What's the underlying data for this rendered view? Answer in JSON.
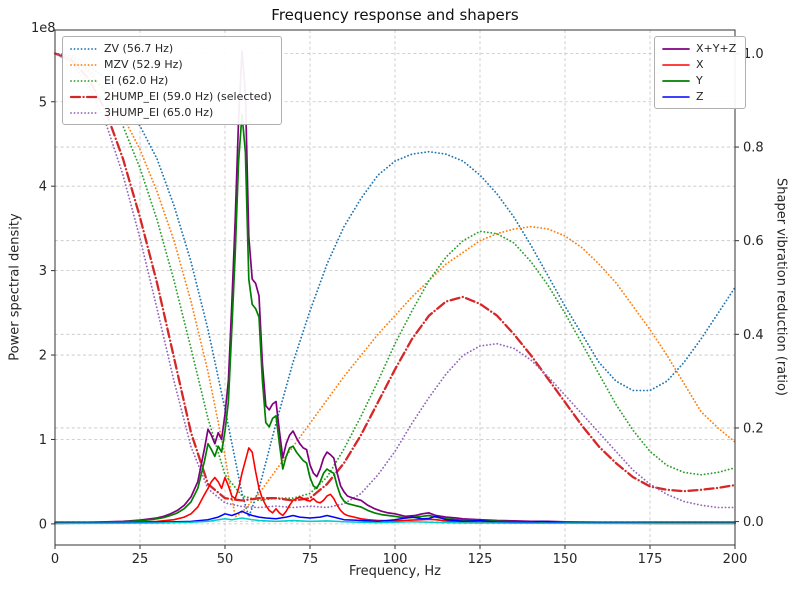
{
  "window": {
    "title": "Frequency response and shapers"
  },
  "chart_data": {
    "type": "line",
    "title": "Frequency response and shapers",
    "xlabel": "Frequency, Hz",
    "ylabel_left": "Power spectral density",
    "ylabel_right": "Shaper vibration reduction (ratio)",
    "offset_text": "1e8",
    "xlim": [
      0,
      200
    ],
    "ylim_left": [
      -0.25,
      5.85
    ],
    "ylim_right": [
      -0.05,
      1.05
    ],
    "left_axis_scale": "1e8",
    "grid": true,
    "xticks": [
      "0",
      "25",
      "50",
      "75",
      "100",
      "125",
      "150",
      "175",
      "200"
    ],
    "yticks_left": [
      "0",
      "1",
      "2",
      "3",
      "4",
      "5"
    ],
    "yticks_right": [
      "0.0",
      "0.2",
      "0.4",
      "0.6",
      "0.8",
      "1.0"
    ],
    "legend_shapers_position": "upper left",
    "legend_series_position": "upper right",
    "series": [
      {
        "name": "ZV",
        "label": "ZV (56.7 Hz)",
        "legend": 1,
        "axis": "right",
        "color": "#1f77b4",
        "style": "dotted",
        "width": 1.8,
        "x": [
          0,
          5,
          10,
          15,
          20,
          25,
          30,
          35,
          40,
          45,
          50,
          55,
          57,
          60,
          65,
          70,
          75,
          80,
          85,
          90,
          95,
          100,
          105,
          110,
          115,
          120,
          125,
          130,
          135,
          140,
          145,
          150,
          155,
          160,
          165,
          170,
          175,
          180,
          185,
          190,
          195,
          200
        ],
        "y": [
          1.0,
          0.995,
          0.975,
          0.945,
          0.9,
          0.845,
          0.775,
          0.675,
          0.555,
          0.41,
          0.24,
          0.06,
          0.01,
          0.07,
          0.21,
          0.34,
          0.45,
          0.55,
          0.63,
          0.69,
          0.74,
          0.77,
          0.785,
          0.79,
          0.785,
          0.77,
          0.74,
          0.7,
          0.65,
          0.59,
          0.525,
          0.46,
          0.4,
          0.34,
          0.3,
          0.28,
          0.28,
          0.3,
          0.34,
          0.39,
          0.445,
          0.5
        ]
      },
      {
        "name": "MZV",
        "label": "MZV (52.9 Hz)",
        "legend": 1,
        "axis": "right",
        "color": "#ff7f0e",
        "style": "dotted",
        "width": 1.8,
        "x": [
          0,
          5,
          10,
          15,
          20,
          25,
          30,
          35,
          40,
          45,
          50,
          53,
          55,
          60,
          65,
          70,
          75,
          80,
          85,
          90,
          95,
          100,
          105,
          110,
          115,
          120,
          125,
          130,
          135,
          140,
          145,
          150,
          155,
          160,
          165,
          170,
          175,
          180,
          185,
          190,
          195,
          200
        ],
        "y": [
          1.0,
          0.99,
          0.965,
          0.92,
          0.865,
          0.795,
          0.705,
          0.6,
          0.47,
          0.32,
          0.14,
          0.01,
          0.02,
          0.06,
          0.11,
          0.16,
          0.21,
          0.26,
          0.31,
          0.355,
          0.4,
          0.44,
          0.48,
          0.515,
          0.55,
          0.575,
          0.6,
          0.615,
          0.625,
          0.63,
          0.625,
          0.61,
          0.585,
          0.55,
          0.51,
          0.46,
          0.41,
          0.355,
          0.295,
          0.235,
          0.2,
          0.17
        ]
      },
      {
        "name": "EI",
        "label": "EI (62.0 Hz)",
        "legend": 1,
        "axis": "right",
        "color": "#2ca02c",
        "style": "dotted",
        "width": 1.8,
        "x": [
          0,
          5,
          10,
          15,
          20,
          25,
          30,
          35,
          40,
          45,
          50,
          55,
          60,
          65,
          70,
          75,
          80,
          85,
          90,
          95,
          100,
          105,
          110,
          115,
          120,
          125,
          130,
          135,
          140,
          145,
          150,
          155,
          160,
          165,
          170,
          175,
          180,
          185,
          190,
          195,
          200
        ],
        "y": [
          1.0,
          0.99,
          0.96,
          0.915,
          0.845,
          0.755,
          0.645,
          0.515,
          0.37,
          0.22,
          0.1,
          0.055,
          0.045,
          0.05,
          0.05,
          0.06,
          0.095,
          0.155,
          0.225,
          0.3,
          0.38,
          0.45,
          0.515,
          0.565,
          0.6,
          0.62,
          0.615,
          0.595,
          0.555,
          0.505,
          0.445,
          0.38,
          0.315,
          0.25,
          0.195,
          0.15,
          0.12,
          0.105,
          0.1,
          0.105,
          0.115
        ]
      },
      {
        "name": "2HUMP_EI",
        "label": "2HUMP_EI (59.0 Hz) (selected)",
        "legend": 1,
        "axis": "right",
        "color": "#d62728",
        "style": "dashdot",
        "width": 2.3,
        "x": [
          0,
          5,
          10,
          15,
          20,
          25,
          30,
          35,
          40,
          45,
          50,
          55,
          60,
          65,
          70,
          75,
          80,
          85,
          90,
          95,
          100,
          105,
          110,
          115,
          120,
          125,
          130,
          135,
          140,
          145,
          150,
          155,
          160,
          165,
          170,
          175,
          180,
          185,
          190,
          195,
          200
        ],
        "y": [
          1.0,
          0.985,
          0.945,
          0.875,
          0.775,
          0.65,
          0.51,
          0.35,
          0.19,
          0.08,
          0.05,
          0.045,
          0.05,
          0.05,
          0.045,
          0.05,
          0.08,
          0.125,
          0.185,
          0.255,
          0.325,
          0.39,
          0.44,
          0.47,
          0.48,
          0.465,
          0.44,
          0.4,
          0.355,
          0.305,
          0.255,
          0.205,
          0.16,
          0.125,
          0.095,
          0.075,
          0.068,
          0.065,
          0.068,
          0.072,
          0.078
        ]
      },
      {
        "name": "3HUMP_EI",
        "label": "3HUMP_EI (65.0 Hz)",
        "legend": 1,
        "axis": "right",
        "color": "#9467bd",
        "style": "dotted",
        "width": 1.8,
        "x": [
          0,
          5,
          10,
          15,
          20,
          25,
          30,
          35,
          40,
          45,
          50,
          55,
          60,
          65,
          70,
          75,
          80,
          85,
          90,
          95,
          100,
          105,
          110,
          115,
          120,
          125,
          130,
          135,
          140,
          145,
          150,
          155,
          160,
          165,
          170,
          175,
          180,
          185,
          190,
          195,
          200
        ],
        "y": [
          1.0,
          0.98,
          0.93,
          0.85,
          0.74,
          0.605,
          0.455,
          0.3,
          0.16,
          0.07,
          0.04,
          0.032,
          0.03,
          0.033,
          0.03,
          0.033,
          0.03,
          0.038,
          0.06,
          0.1,
          0.15,
          0.21,
          0.265,
          0.315,
          0.355,
          0.375,
          0.38,
          0.37,
          0.345,
          0.31,
          0.27,
          0.23,
          0.19,
          0.15,
          0.11,
          0.08,
          0.058,
          0.043,
          0.035,
          0.03,
          0.03
        ]
      },
      {
        "name": "X+Y+Z",
        "label": "X+Y+Z",
        "legend": 2,
        "axis": "left",
        "color": "#800080",
        "style": "solid",
        "width": 1.7,
        "x": [
          0,
          5,
          10,
          15,
          20,
          25,
          28,
          30,
          32,
          34,
          36,
          38,
          40,
          42,
          44,
          45,
          46,
          47,
          48,
          49,
          50,
          51,
          52,
          53,
          54,
          55,
          56,
          57,
          58,
          59,
          60,
          61,
          62,
          63,
          64,
          65,
          66,
          67,
          68,
          69,
          70,
          71,
          72,
          73,
          74,
          75,
          76,
          77,
          78,
          79,
          80,
          81,
          82,
          83,
          84,
          85,
          86,
          88,
          90,
          92,
          94,
          96,
          98,
          100,
          103,
          106,
          108,
          110,
          112,
          115,
          118,
          120,
          125,
          130,
          135,
          140,
          145,
          150,
          160,
          170,
          180,
          190,
          200
        ],
        "y": [
          0.02,
          0.02,
          0.02,
          0.025,
          0.03,
          0.045,
          0.06,
          0.07,
          0.09,
          0.12,
          0.16,
          0.22,
          0.32,
          0.5,
          0.9,
          1.12,
          1.05,
          0.95,
          1.08,
          1.0,
          1.3,
          1.7,
          2.6,
          3.6,
          4.8,
          5.6,
          5.1,
          3.4,
          2.9,
          2.85,
          2.7,
          1.9,
          1.4,
          1.35,
          1.42,
          1.45,
          1.1,
          0.78,
          0.95,
          1.05,
          1.1,
          1.02,
          0.95,
          0.9,
          0.88,
          0.7,
          0.6,
          0.56,
          0.65,
          0.78,
          0.85,
          0.82,
          0.78,
          0.6,
          0.45,
          0.38,
          0.33,
          0.3,
          0.28,
          0.22,
          0.18,
          0.15,
          0.13,
          0.12,
          0.09,
          0.1,
          0.12,
          0.13,
          0.1,
          0.08,
          0.07,
          0.06,
          0.05,
          0.04,
          0.035,
          0.03,
          0.03,
          0.025,
          0.02,
          0.02,
          0.02,
          0.02,
          0.02
        ]
      },
      {
        "name": "X",
        "label": "X",
        "legend": 2,
        "axis": "left",
        "color": "#ff0000",
        "style": "solid",
        "width": 1.6,
        "x": [
          0,
          10,
          20,
          30,
          35,
          38,
          40,
          42,
          44,
          45,
          46,
          47,
          48,
          49,
          50,
          51,
          52,
          53,
          54,
          55,
          56,
          57,
          58,
          59,
          60,
          61,
          62,
          63,
          64,
          65,
          66,
          67,
          68,
          69,
          70,
          71,
          72,
          73,
          74,
          75,
          76,
          77,
          78,
          79,
          80,
          81,
          82,
          83,
          84,
          85,
          86,
          88,
          90,
          92,
          95,
          100,
          105,
          108,
          110,
          112,
          115,
          120,
          125,
          130,
          140,
          150,
          160,
          180,
          200
        ],
        "y": [
          0.005,
          0.01,
          0.015,
          0.03,
          0.05,
          0.08,
          0.12,
          0.2,
          0.35,
          0.42,
          0.5,
          0.55,
          0.5,
          0.42,
          0.55,
          0.45,
          0.33,
          0.3,
          0.42,
          0.6,
          0.75,
          0.9,
          0.85,
          0.62,
          0.42,
          0.3,
          0.22,
          0.16,
          0.13,
          0.18,
          0.13,
          0.1,
          0.15,
          0.22,
          0.28,
          0.3,
          0.32,
          0.3,
          0.28,
          0.27,
          0.3,
          0.26,
          0.25,
          0.28,
          0.33,
          0.35,
          0.3,
          0.22,
          0.16,
          0.12,
          0.1,
          0.08,
          0.06,
          0.05,
          0.04,
          0.035,
          0.045,
          0.05,
          0.055,
          0.05,
          0.035,
          0.025,
          0.02,
          0.015,
          0.01,
          0.01,
          0.008,
          0.006,
          0.005
        ]
      },
      {
        "name": "Y",
        "label": "Y",
        "legend": 2,
        "axis": "left",
        "color": "#008000",
        "style": "solid",
        "width": 1.7,
        "x": [
          0,
          5,
          10,
          15,
          20,
          25,
          28,
          30,
          32,
          34,
          36,
          38,
          40,
          42,
          44,
          45,
          46,
          47,
          48,
          49,
          50,
          51,
          52,
          53,
          54,
          55,
          56,
          57,
          58,
          59,
          60,
          61,
          62,
          63,
          64,
          65,
          66,
          67,
          68,
          69,
          70,
          71,
          72,
          73,
          74,
          75,
          76,
          77,
          78,
          79,
          80,
          81,
          82,
          83,
          84,
          85,
          86,
          88,
          90,
          92,
          94,
          96,
          98,
          100,
          103,
          106,
          108,
          110,
          112,
          115,
          118,
          120,
          125,
          130,
          135,
          140,
          145,
          150,
          160,
          170,
          180,
          190,
          200
        ],
        "y": [
          0.01,
          0.01,
          0.015,
          0.02,
          0.025,
          0.035,
          0.05,
          0.06,
          0.075,
          0.1,
          0.13,
          0.18,
          0.26,
          0.42,
          0.75,
          0.95,
          0.88,
          0.8,
          0.92,
          0.85,
          1.1,
          1.45,
          2.3,
          3.2,
          4.3,
          4.85,
          4.4,
          2.9,
          2.6,
          2.55,
          2.45,
          1.7,
          1.2,
          1.15,
          1.25,
          1.28,
          0.95,
          0.65,
          0.8,
          0.9,
          0.92,
          0.85,
          0.8,
          0.75,
          0.72,
          0.55,
          0.45,
          0.42,
          0.5,
          0.6,
          0.65,
          0.62,
          0.6,
          0.45,
          0.33,
          0.27,
          0.24,
          0.22,
          0.2,
          0.16,
          0.13,
          0.11,
          0.1,
          0.09,
          0.07,
          0.08,
          0.09,
          0.1,
          0.08,
          0.06,
          0.05,
          0.045,
          0.04,
          0.03,
          0.025,
          0.02,
          0.02,
          0.02,
          0.015,
          0.015,
          0.01,
          0.01,
          0.01
        ]
      },
      {
        "name": "Z",
        "label": "Z",
        "legend": 2,
        "axis": "left",
        "color": "#0000ff",
        "style": "solid",
        "width": 1.5,
        "x": [
          0,
          10,
          20,
          30,
          40,
          45,
          48,
          50,
          52,
          54,
          55,
          56,
          58,
          60,
          62,
          65,
          68,
          70,
          72,
          75,
          78,
          80,
          82,
          85,
          88,
          90,
          95,
          100,
          103,
          105,
          108,
          110,
          112,
          115,
          118,
          120,
          125,
          130,
          135,
          140,
          143,
          145,
          150,
          160,
          170,
          180,
          190,
          200
        ],
        "y": [
          0.008,
          0.01,
          0.012,
          0.02,
          0.03,
          0.05,
          0.08,
          0.12,
          0.1,
          0.13,
          0.15,
          0.13,
          0.1,
          0.08,
          0.07,
          0.06,
          0.08,
          0.1,
          0.08,
          0.07,
          0.08,
          0.1,
          0.08,
          0.05,
          0.045,
          0.04,
          0.03,
          0.05,
          0.07,
          0.08,
          0.06,
          0.065,
          0.09,
          0.05,
          0.04,
          0.03,
          0.04,
          0.02,
          0.02,
          0.02,
          0.03,
          0.025,
          0.012,
          0.01,
          0.01,
          0.008,
          0.008,
          0.008
        ]
      },
      {
        "name": "unlabeled-cyan",
        "label": null,
        "legend": 0,
        "axis": "left",
        "color": "#00cccc",
        "style": "solid",
        "width": 1.5,
        "x": [
          0,
          10,
          20,
          30,
          40,
          45,
          50,
          52,
          55,
          58,
          60,
          65,
          70,
          75,
          80,
          85,
          90,
          95,
          100,
          105,
          110,
          115,
          120,
          130,
          140,
          150,
          160,
          170,
          180,
          190,
          200
        ],
        "y": [
          0.005,
          0.006,
          0.008,
          0.01,
          0.02,
          0.03,
          0.06,
          0.05,
          0.07,
          0.05,
          0.04,
          0.03,
          0.04,
          0.03,
          0.035,
          0.025,
          0.02,
          0.015,
          0.02,
          0.025,
          0.02,
          0.015,
          0.012,
          0.01,
          0.008,
          0.008,
          0.006,
          0.006,
          0.005,
          0.005,
          0.005
        ]
      }
    ]
  }
}
